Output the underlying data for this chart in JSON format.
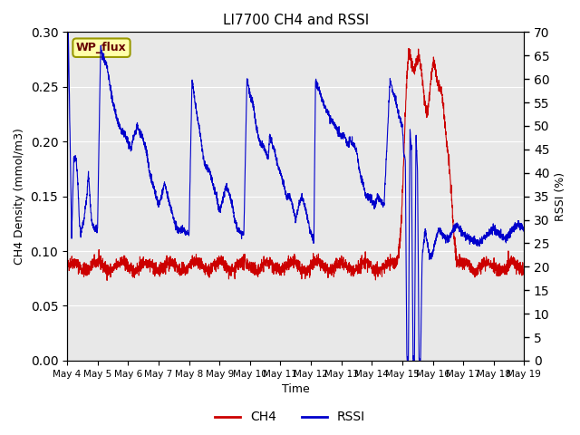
{
  "title": "LI7700 CH4 and RSSI",
  "xlabel": "Time",
  "ylabel_left": "CH4 Density (mmol/m3)",
  "ylabel_right": "RSSI (%)",
  "site_label": "WP_flux",
  "ylim_left": [
    0.0,
    0.3
  ],
  "ylim_right": [
    0,
    70
  ],
  "yticks_left": [
    0.0,
    0.05,
    0.1,
    0.15,
    0.2,
    0.25,
    0.3
  ],
  "yticks_right": [
    0,
    5,
    10,
    15,
    20,
    25,
    30,
    35,
    40,
    45,
    50,
    55,
    60,
    65,
    70
  ],
  "xtick_labels": [
    "May 4",
    "May 5",
    "May 6",
    "May 7",
    "May 8",
    "May 9",
    "May 10",
    "May 11",
    "May 12",
    "May 13",
    "May 14",
    "May 15",
    "May 16",
    "May 17",
    "May 18",
    "May 19"
  ],
  "ch4_color": "#cc0000",
  "rssi_color": "#0000cc",
  "background_color": "#e8e8e8",
  "annotation_box_facecolor": "#ffffaa",
  "annotation_box_edgecolor": "#999900",
  "grid_color": "#ffffff",
  "fig_facecolor": "#ffffff"
}
